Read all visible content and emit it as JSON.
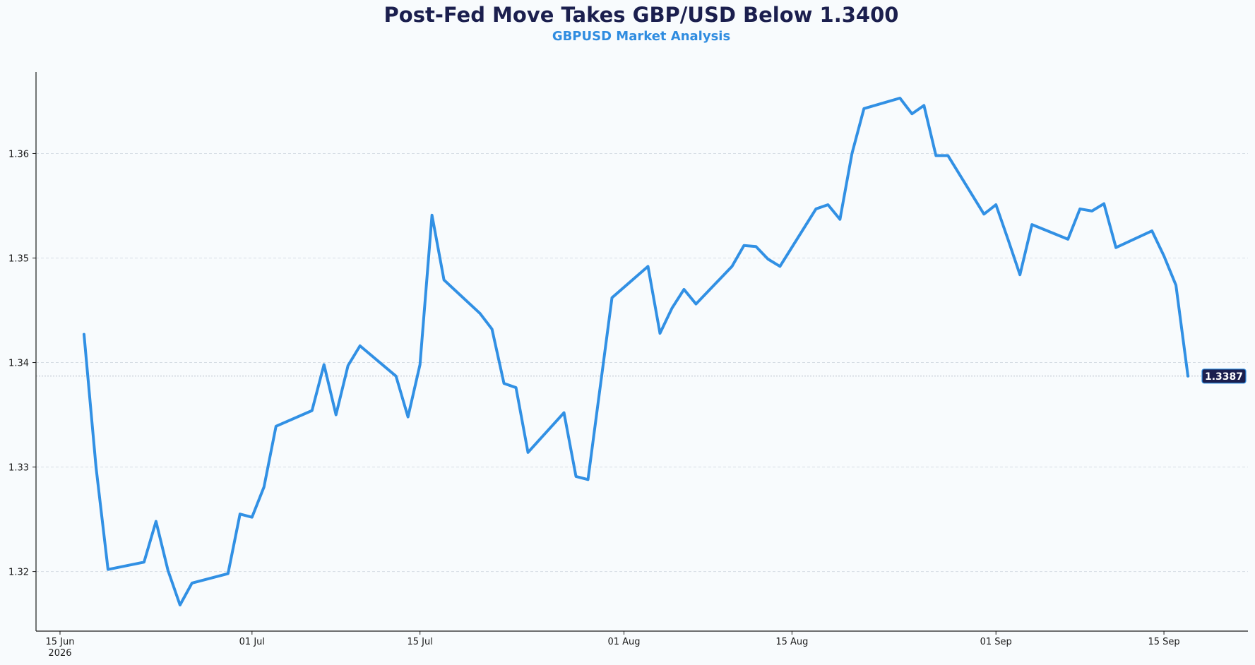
{
  "colors": {
    "background": "#f8fbfd",
    "title": "#1b1f4e",
    "subtitle": "#2f8ce0",
    "line": "#3190e4",
    "grid": "#d6dde4",
    "axis": "#1a1a1a",
    "badge_fill": "#1b1f4e",
    "badge_text": "#ffffff"
  },
  "chart_data": {
    "type": "line",
    "title": "Post-Fed Move Takes GBP/USD Below 1.3400",
    "subtitle": "GBPUSD Market Analysis",
    "xlabel": "",
    "ylabel": "",
    "x_axis": {
      "type": "date",
      "range": [
        "2026-06-13",
        "2026-09-22"
      ],
      "ticks": [
        {
          "date": "2026-06-15",
          "label": "15 Jun",
          "sublabel": "2026"
        },
        {
          "date": "2026-07-01",
          "label": "01 Jul",
          "sublabel": ""
        },
        {
          "date": "2026-07-15",
          "label": "15 Jul",
          "sublabel": ""
        },
        {
          "date": "2026-08-01",
          "label": "01 Aug",
          "sublabel": ""
        },
        {
          "date": "2026-08-15",
          "label": "15 Aug",
          "sublabel": ""
        },
        {
          "date": "2026-09-01",
          "label": "01 Sep",
          "sublabel": ""
        },
        {
          "date": "2026-09-15",
          "label": "15 Sep",
          "sublabel": ""
        }
      ]
    },
    "y_axis": {
      "range": [
        1.3143,
        1.3678
      ],
      "ticks": [
        {
          "value": 1.32,
          "label": "1.32"
        },
        {
          "value": 1.33,
          "label": "1.33"
        },
        {
          "value": 1.34,
          "label": "1.34"
        },
        {
          "value": 1.35,
          "label": "1.35"
        },
        {
          "value": 1.36,
          "label": "1.36"
        }
      ]
    },
    "grid": "horizontal dashed",
    "legend": "none",
    "last_value": {
      "value": 1.3387,
      "label": "1.3387"
    },
    "series": [
      {
        "x": [
          "2026-06-17",
          "2026-06-18",
          "2026-06-19",
          "2026-06-22",
          "2026-06-23",
          "2026-06-24",
          "2026-06-25",
          "2026-06-26",
          "2026-06-29",
          "2026-06-30",
          "2026-07-01",
          "2026-07-02",
          "2026-07-03",
          "2026-07-06",
          "2026-07-07",
          "2026-07-08",
          "2026-07-09",
          "2026-07-10",
          "2026-07-13",
          "2026-07-14",
          "2026-07-15",
          "2026-07-16",
          "2026-07-17",
          "2026-07-20",
          "2026-07-21",
          "2026-07-22",
          "2026-07-23",
          "2026-07-24",
          "2026-07-27",
          "2026-07-28",
          "2026-07-29",
          "2026-07-30",
          "2026-07-31",
          "2026-08-03",
          "2026-08-04",
          "2026-08-05",
          "2026-08-06",
          "2026-08-07",
          "2026-08-10",
          "2026-08-11",
          "2026-08-12",
          "2026-08-13",
          "2026-08-14",
          "2026-08-17",
          "2026-08-18",
          "2026-08-19",
          "2026-08-20",
          "2026-08-21",
          "2026-08-24",
          "2026-08-25",
          "2026-08-26",
          "2026-08-27",
          "2026-08-28",
          "2026-08-31",
          "2026-09-01",
          "2026-09-02",
          "2026-09-03",
          "2026-09-04",
          "2026-09-07",
          "2026-09-08",
          "2026-09-09",
          "2026-09-10",
          "2026-09-11",
          "2026-09-14",
          "2026-09-15",
          "2026-09-16",
          "2026-09-17"
        ],
        "values": [
          1.3427,
          1.33,
          1.3202,
          1.3209,
          1.3248,
          1.3201,
          1.3168,
          1.3189,
          1.3198,
          1.3255,
          1.3252,
          1.3281,
          1.3339,
          1.3354,
          1.3398,
          1.335,
          1.3397,
          1.3416,
          1.3387,
          1.3348,
          1.3398,
          1.3541,
          1.3479,
          1.3447,
          1.3432,
          1.338,
          1.3376,
          1.3314,
          1.3352,
          1.3291,
          1.3288,
          1.3375,
          1.3462,
          1.3492,
          1.3428,
          1.3452,
          1.347,
          1.3456,
          1.3492,
          1.3512,
          1.3511,
          1.3499,
          1.3492,
          1.3547,
          1.3551,
          1.3537,
          1.36,
          1.3643,
          1.3653,
          1.3638,
          1.3646,
          1.3598,
          1.3598,
          1.3542,
          1.3551,
          1.3518,
          1.3484,
          1.3532,
          1.3518,
          1.3547,
          1.3545,
          1.3552,
          1.351,
          1.3526,
          1.3502,
          1.3474,
          1.3387
        ]
      }
    ]
  }
}
